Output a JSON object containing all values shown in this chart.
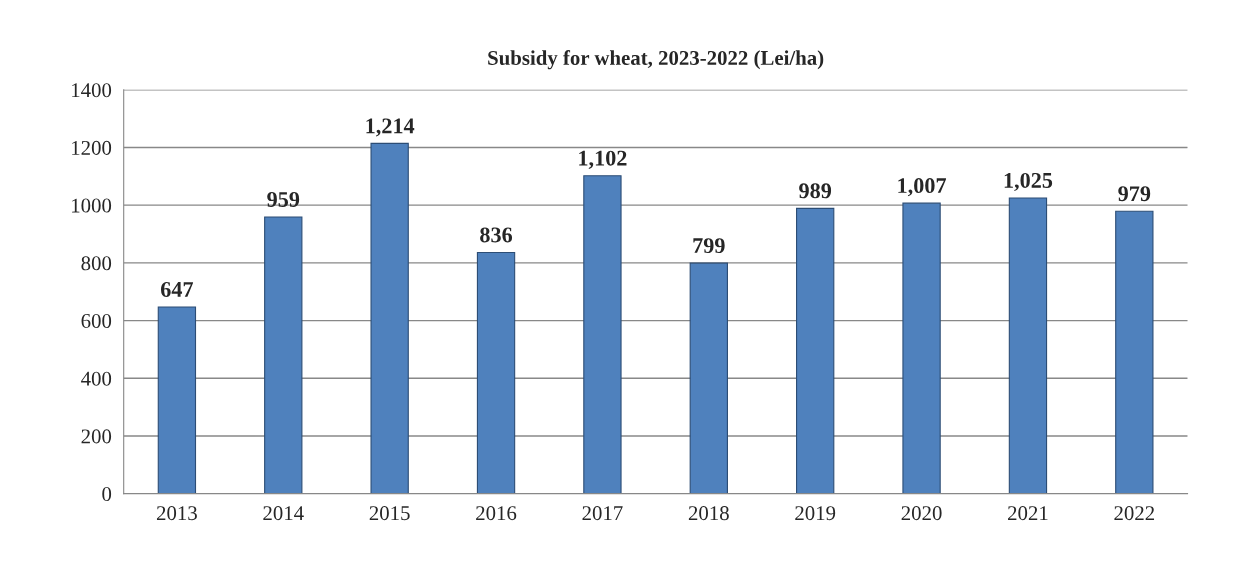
{
  "chart_data": {
    "type": "bar",
    "title": "Subsidy for wheat, 2023-2022 (Lei/ha)",
    "categories": [
      "2013",
      "2014",
      "2015",
      "2016",
      "2017",
      "2018",
      "2019",
      "2020",
      "2021",
      "2022"
    ],
    "values": [
      647,
      959,
      1214,
      836,
      1102,
      799,
      989,
      1007,
      1025,
      979
    ],
    "value_labels": [
      "647",
      "959",
      "1,214",
      "836",
      "1,102",
      "799",
      "989",
      "1,007",
      "1,025",
      "979"
    ],
    "color": "#4f81bd",
    "ylim": [
      0,
      1400
    ],
    "yticks": [
      0,
      200,
      400,
      600,
      800,
      1000,
      1200,
      1400
    ],
    "grid": "y"
  }
}
